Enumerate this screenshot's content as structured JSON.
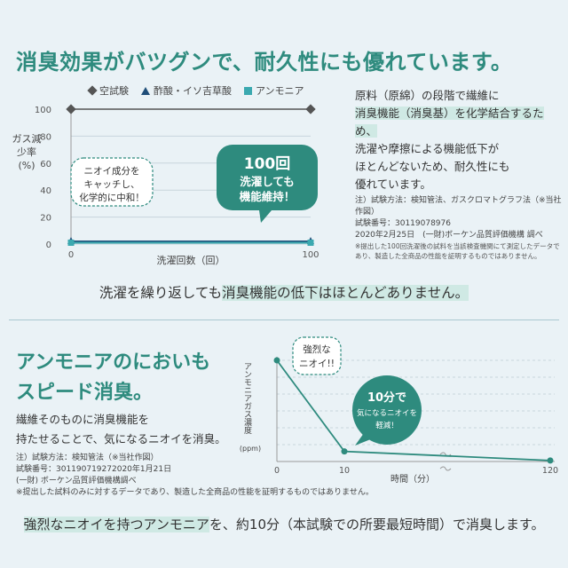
{
  "section1": {
    "title": "消臭効果がバツグンで、耐久性にも優れています。",
    "right_text": [
      "原料（原綿）の段階で繊維に",
      "消臭機能（消臭基）を化学結合するため、",
      "洗濯や摩擦による機能低下が",
      "ほとんどないため、耐久性にも",
      "優れています。"
    ],
    "note_method": "注）試験方法：検知管法、ガスクロマトグラフ法（※当社作図）",
    "note_number": "試験番号：30119078976",
    "note_date": "2020年2月25日　(一財)ボーケン品質評価機構 調べ",
    "note_disclaimer": "※提出した100回洗濯後の試料を当該検査機関にて測定したデータであり、製造した全商品の性能を証明するものではありません。",
    "caption_pre": "洗濯を繰り返しても",
    "caption_hl": "消臭機能の低下はほとんどありません。",
    "callout_left": [
      "ニオイ成分を",
      "キャッチし、",
      "化学的に中和！"
    ],
    "callout_right": [
      "100回",
      "洗濯しても",
      "機能維持！"
    ]
  },
  "section2": {
    "title_lines": [
      "アンモニアのにおいも",
      "スピード消臭。"
    ],
    "body_lines": [
      "繊維そのものに消臭機能を",
      "持たせることで、気になるニオイを消臭。"
    ],
    "note_method": "注）試験方法：検知管法（※当社作図）",
    "note_number": "試験番号：301190719272020年1月21日",
    "note_org": "(一財) ボーケン品質評価機構調べ",
    "note_disclaimer": "※提出した試料のみに対するデータであり、製造した全商品の性能を証明するものではありません。",
    "caption_hl": "強烈なニオイを持つアンモニア",
    "caption_post": "を、約10分（本試験での所要最短時間）で消臭します。",
    "callout_top": [
      "強烈な",
      "ニオイ!!"
    ],
    "callout_circle": [
      "10分で",
      "気になるニオイを",
      "軽減！"
    ]
  },
  "chart_data": [
    {
      "type": "line",
      "legend": [
        "空試験",
        "酢酸・イソ吉草酸",
        "アンモニア"
      ],
      "ylabel": "ガス減少率(%)",
      "xlabel": "洗濯回数（回）",
      "x": [
        0,
        100
      ],
      "xticks": [
        "0",
        "100"
      ],
      "yticks": [
        "0",
        "20",
        "40",
        "60",
        "80",
        "100"
      ],
      "ylim": [
        0,
        100
      ],
      "series": [
        {
          "name": "空試験",
          "values": [
            100,
            100
          ],
          "color": "#555555"
        },
        {
          "name": "酢酸・イソ吉草酸",
          "values": [
            2,
            2
          ],
          "color": "#1f4e79"
        },
        {
          "name": "アンモニア",
          "values": [
            1,
            1
          ],
          "color": "#3ba9b0"
        }
      ]
    },
    {
      "type": "line",
      "ylabel": "アンモニアガス濃度(ppm)",
      "xlabel": "時間（分）",
      "x": [
        0,
        10,
        120
      ],
      "xticks": [
        "0",
        "10",
        "120"
      ],
      "series": [
        {
          "values": [
            100,
            10,
            1
          ],
          "color": "#2e8b7e"
        }
      ]
    }
  ]
}
